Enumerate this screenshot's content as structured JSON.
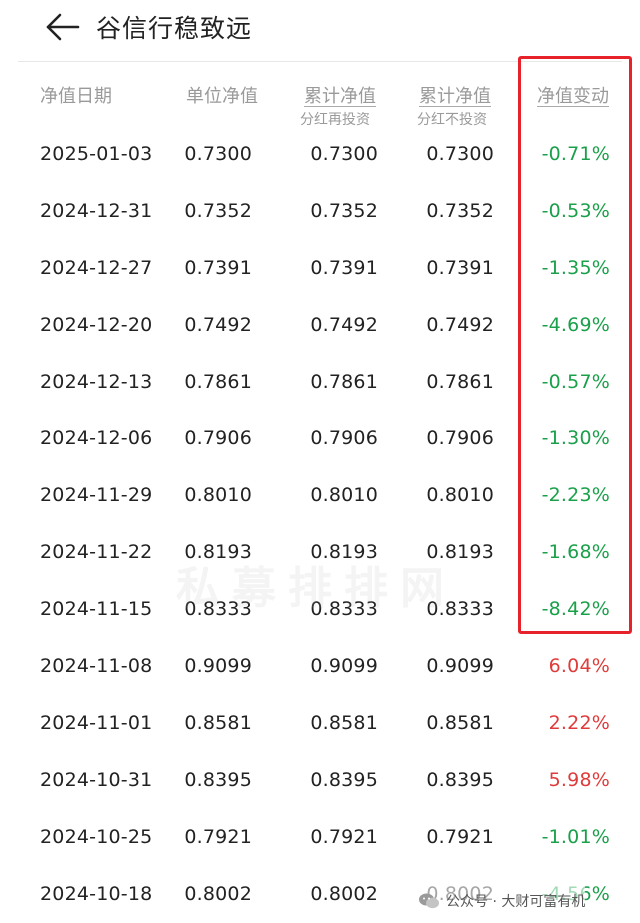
{
  "header": {
    "title": "谷信行稳致远",
    "back_icon": "arrow-left-icon"
  },
  "columns": {
    "date": "净值日期",
    "unit": "单位净值",
    "cum_reinvest": "累计净值",
    "cum_reinvest_sub": "分红再投资",
    "cum_noreinvest": "累计净值",
    "cum_noreinvest_sub": "分红不投资",
    "change": "净值变动"
  },
  "colors": {
    "negative": "#1aa04a",
    "positive": "#e03b3b",
    "highlight_border": "#e8222a"
  },
  "rows": [
    {
      "date": "2025-01-03",
      "unit": "0.7300",
      "cum1": "0.7300",
      "cum2": "0.7300",
      "change": "-0.71%",
      "dir": "down"
    },
    {
      "date": "2024-12-31",
      "unit": "0.7352",
      "cum1": "0.7352",
      "cum2": "0.7352",
      "change": "-0.53%",
      "dir": "down"
    },
    {
      "date": "2024-12-27",
      "unit": "0.7391",
      "cum1": "0.7391",
      "cum2": "0.7391",
      "change": "-1.35%",
      "dir": "down"
    },
    {
      "date": "2024-12-20",
      "unit": "0.7492",
      "cum1": "0.7492",
      "cum2": "0.7492",
      "change": "-4.69%",
      "dir": "down"
    },
    {
      "date": "2024-12-13",
      "unit": "0.7861",
      "cum1": "0.7861",
      "cum2": "0.7861",
      "change": "-0.57%",
      "dir": "down"
    },
    {
      "date": "2024-12-06",
      "unit": "0.7906",
      "cum1": "0.7906",
      "cum2": "0.7906",
      "change": "-1.30%",
      "dir": "down"
    },
    {
      "date": "2024-11-29",
      "unit": "0.8010",
      "cum1": "0.8010",
      "cum2": "0.8010",
      "change": "-2.23%",
      "dir": "down"
    },
    {
      "date": "2024-11-22",
      "unit": "0.8193",
      "cum1": "0.8193",
      "cum2": "0.8193",
      "change": "-1.68%",
      "dir": "down"
    },
    {
      "date": "2024-11-15",
      "unit": "0.8333",
      "cum1": "0.8333",
      "cum2": "0.8333",
      "change": "-8.42%",
      "dir": "down"
    },
    {
      "date": "2024-11-08",
      "unit": "0.9099",
      "cum1": "0.9099",
      "cum2": "0.9099",
      "change": "6.04%",
      "dir": "up"
    },
    {
      "date": "2024-11-01",
      "unit": "0.8581",
      "cum1": "0.8581",
      "cum2": "0.8581",
      "change": "2.22%",
      "dir": "up"
    },
    {
      "date": "2024-10-31",
      "unit": "0.8395",
      "cum1": "0.8395",
      "cum2": "0.8395",
      "change": "5.98%",
      "dir": "up"
    },
    {
      "date": "2024-10-25",
      "unit": "0.7921",
      "cum1": "0.7921",
      "cum2": "0.7921",
      "change": "-1.01%",
      "dir": "down"
    },
    {
      "date": "2024-10-18",
      "unit": "0.8002",
      "cum1": "0.8002",
      "cum2": "0.8002",
      "change": "-4.56%",
      "dir": "down"
    }
  ],
  "watermark": "私募排排网",
  "footer": {
    "text": "公众号 · 大财可富有机",
    "icon": "wechat-icon"
  }
}
